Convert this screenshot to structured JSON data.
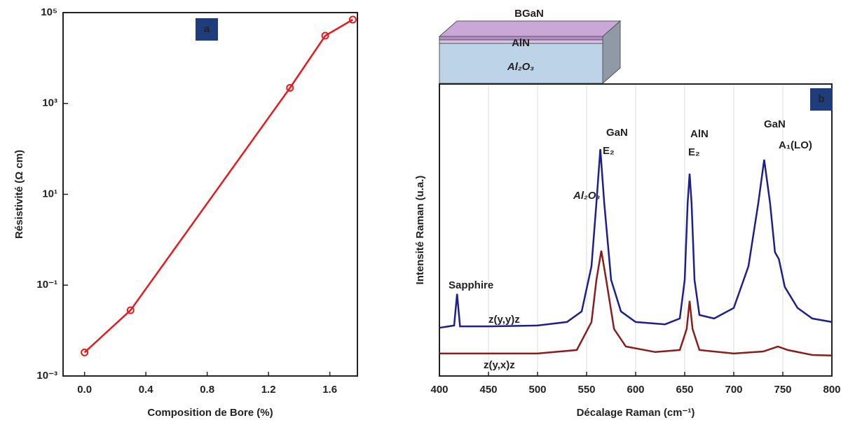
{
  "chart_data": [
    {
      "type": "line",
      "xlabel": "Composition de Bore (%)",
      "ylabel": "Résistivité (Ω cm)",
      "annotation": "a",
      "ylog": true,
      "markers": true,
      "xlim": [
        -0.14,
        1.78
      ],
      "xticks": [
        {
          "value": 0,
          "label": "0.0"
        },
        0.4,
        0.8,
        1.2,
        1.6
      ],
      "ylim": [
        0.001,
        100000
      ],
      "yticks": [
        {
          "value": 0.001,
          "label": "10⁻³"
        },
        {
          "value": 0.1,
          "label": "10⁻¹"
        },
        {
          "value": 10,
          "label": "10¹"
        },
        {
          "value": 1000,
          "label": "10³"
        },
        {
          "value": 100000,
          "label": "10⁵"
        }
      ],
      "series": [
        {
          "color": "#e8191c",
          "x": [
            0.0,
            0.3,
            1.34,
            1.57,
            1.75
          ],
          "values": [
            0.0033,
            0.028,
            2200,
            31000,
            70000
          ]
        }
      ]
    },
    {
      "type": "line",
      "xlabel": "Décalage Raman (cm⁻¹)",
      "ylabel": "Intensité Raman (u.a.)",
      "annotation": "b",
      "grid": true,
      "xlim": [
        400,
        800
      ],
      "xticks": [
        400,
        450,
        500,
        550,
        600,
        650,
        700,
        750,
        800
      ],
      "ylim": [
        0,
        100
      ],
      "series": [
        {
          "name": "z(y,y)z",
          "color": "#1c1f8c",
          "x": [
            400,
            415,
            418,
            421,
            450,
            500,
            530,
            545,
            555,
            560,
            564,
            568,
            575,
            585,
            600,
            630,
            645,
            650,
            653,
            655,
            657,
            660,
            665,
            680,
            700,
            715,
            725,
            731,
            737,
            742,
            746,
            752,
            765,
            780,
            800
          ],
          "values": [
            16.5,
            17.3,
            28.1,
            17.0,
            17.0,
            17.3,
            18.5,
            22.1,
            37.6,
            59.2,
            77.7,
            59.2,
            32.9,
            22.1,
            18.5,
            17.7,
            19.7,
            32.9,
            59.2,
            69.3,
            59.2,
            32.9,
            20.9,
            19.7,
            23.3,
            37.6,
            59.2,
            74.1,
            59.2,
            42.4,
            40.0,
            30.5,
            23.3,
            19.7,
            18.5
          ]
        },
        {
          "name": "z(y,x)z",
          "color": "#8b1c1c",
          "x": [
            400,
            500,
            540,
            555,
            560,
            565,
            570,
            578,
            590,
            620,
            645,
            652,
            655,
            658,
            665,
            700,
            730,
            745,
            755,
            780,
            800
          ],
          "values": [
            7.7,
            7.7,
            8.9,
            18.5,
            32.9,
            42.9,
            32.9,
            16.1,
            10.1,
            8.2,
            8.9,
            16.1,
            25.7,
            16.1,
            8.9,
            7.7,
            8.4,
            10.1,
            8.9,
            7.2,
            7.0
          ]
        }
      ],
      "annotations": [
        "Sapphire",
        "Al₂O₃",
        "GaN",
        "E₂",
        "AlN",
        "E₂",
        "GaN",
        "A₁(LO)"
      ],
      "inset_labels": [
        "BGaN",
        "AlN",
        "Al₂O₃"
      ]
    }
  ]
}
